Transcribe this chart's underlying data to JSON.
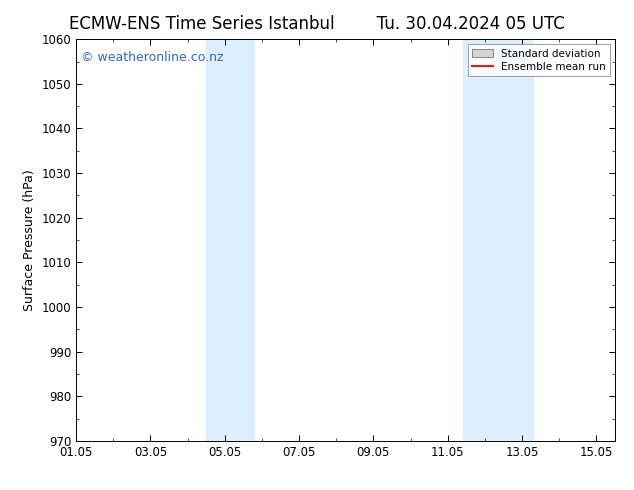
{
  "title_left": "ECMW-ENS Time Series Istanbul",
  "title_right": "Tu. 30.04.2024 05 UTC",
  "ylabel": "Surface Pressure (hPa)",
  "ylim": [
    970,
    1060
  ],
  "yticks": [
    970,
    980,
    990,
    1000,
    1010,
    1020,
    1030,
    1040,
    1050,
    1060
  ],
  "xlim": [
    0.0,
    14.5
  ],
  "xtick_labels": [
    "01.05",
    "03.05",
    "05.05",
    "07.05",
    "09.05",
    "11.05",
    "13.05",
    "15.05"
  ],
  "xtick_positions": [
    0,
    2,
    4,
    6,
    8,
    10,
    12,
    14
  ],
  "shaded_regions": [
    {
      "x_start": 3.5,
      "x_end": 4.8
    },
    {
      "x_start": 10.4,
      "x_end": 12.3
    }
  ],
  "shade_color": "#ddeeff",
  "background_color": "#ffffff",
  "watermark_text": "© weatheronline.co.nz",
  "watermark_color": "#3366cc",
  "legend_std_label": "Standard deviation",
  "legend_ens_label": "Ensemble mean run",
  "legend_patch_color": "#d4d4d4",
  "legend_line_color": "#dd2200",
  "title_fontsize": 12,
  "label_fontsize": 9,
  "tick_fontsize": 8.5,
  "watermark_fontsize": 9
}
